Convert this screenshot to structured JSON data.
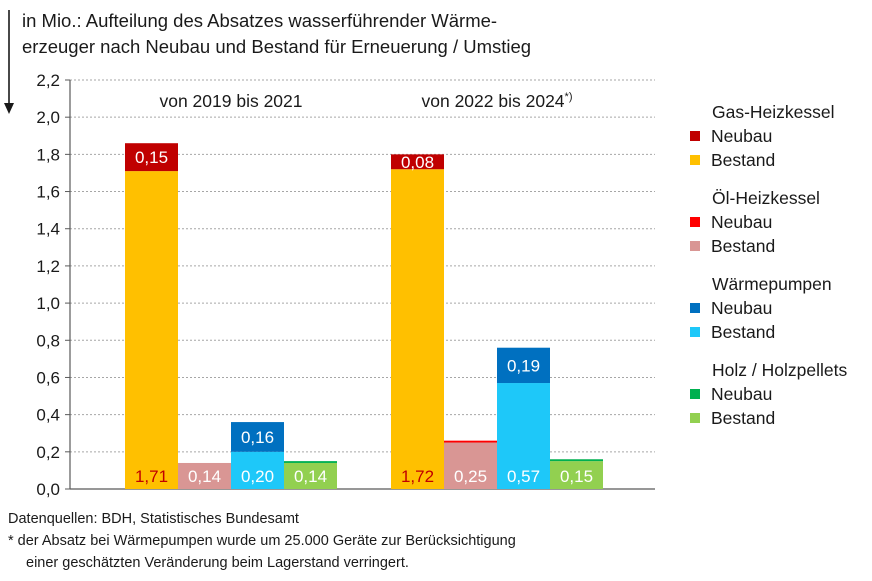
{
  "title": {
    "line1": "in Mio.: Aufteilung des Absatzes wasserführender Wärme-",
    "line2": "erzeuger nach Neubau und Bestand für Erneuerung / Umstieg"
  },
  "chart_data": {
    "type": "bar",
    "stacked": true,
    "grid": true,
    "ylim": [
      0,
      2.2
    ],
    "yticks": [
      "0,0",
      "0,2",
      "0,4",
      "0,6",
      "0,8",
      "1,0",
      "1,2",
      "1,4",
      "1,6",
      "1,8",
      "2,0",
      "2,2"
    ],
    "groups": [
      {
        "label": "von 2019 bis 2021",
        "label_sup": "",
        "bars": [
          {
            "bestand": 1.71,
            "neubau": 0.15,
            "bestand_label": "1,71",
            "neubau_label": "0,15"
          },
          {
            "bestand": 0.14,
            "neubau": 0.0,
            "bestand_label": "0,14",
            "neubau_label": ""
          },
          {
            "bestand": 0.2,
            "neubau": 0.16,
            "bestand_label": "0,20",
            "neubau_label": "0,16"
          },
          {
            "bestand": 0.14,
            "neubau": 0.01,
            "bestand_label": "0,14",
            "neubau_label": ""
          }
        ]
      },
      {
        "label": "von 2022 bis 2024",
        "label_sup": "*)",
        "bars": [
          {
            "bestand": 1.72,
            "neubau": 0.08,
            "bestand_label": "1,72",
            "neubau_label": "0,08"
          },
          {
            "bestand": 0.25,
            "neubau": 0.01,
            "bestand_label": "0,25",
            "neubau_label": ""
          },
          {
            "bestand": 0.57,
            "neubau": 0.19,
            "bestand_label": "0,57",
            "neubau_label": "0,19"
          },
          {
            "bestand": 0.15,
            "neubau": 0.01,
            "bestand_label": "0,15",
            "neubau_label": ""
          }
        ]
      }
    ],
    "series": [
      {
        "name": "Gas-Heizkessel",
        "neubau_color": "#c00000",
        "bestand_color": "#ffc000",
        "bestand_label_color": "#c00000",
        "neubau_label_color": "#ffffff"
      },
      {
        "name": "Öl-Heizkessel",
        "neubau_color": "#ff0000",
        "bestand_color": "#d99694",
        "bestand_label_color": "#ffffff",
        "neubau_label_color": "#ffffff"
      },
      {
        "name": "Wärmepumpen",
        "neubau_color": "#0070c0",
        "bestand_color": "#1ec8f9",
        "bestand_label_color": "#ffffff",
        "neubau_label_color": "#ffffff"
      },
      {
        "name": "Holz / Holzpellets",
        "neubau_color": "#00b050",
        "bestand_color": "#92d050",
        "bestand_label_color": "#ffffff",
        "neubau_label_color": "#ffffff"
      }
    ]
  },
  "legend": [
    {
      "title": "Gas-Heizkessel",
      "neubau": "Neubau",
      "bestand": "Bestand",
      "neubau_color": "#c00000",
      "bestand_color": "#ffc000"
    },
    {
      "title": "Öl-Heizkessel",
      "neubau": "Neubau",
      "bestand": "Bestand",
      "neubau_color": "#ff0000",
      "bestand_color": "#d99694"
    },
    {
      "title": "Wärmepumpen",
      "neubau": "Neubau",
      "bestand": "Bestand",
      "neubau_color": "#0070c0",
      "bestand_color": "#1ec8f9"
    },
    {
      "title": "Holz / Holzpellets",
      "neubau": "Neubau",
      "bestand": "Bestand",
      "neubau_color": "#00b050",
      "bestand_color": "#92d050"
    }
  ],
  "footer": {
    "sources": "Datenquellen:  BDH, Statistisches Bundesamt",
    "note1": "* der Absatz bei Wärmepumpen wurde um 25.000 Geräte zur Berücksichtigung",
    "note2": "einer geschätzten Veränderung beim Lagerstand verringert."
  }
}
